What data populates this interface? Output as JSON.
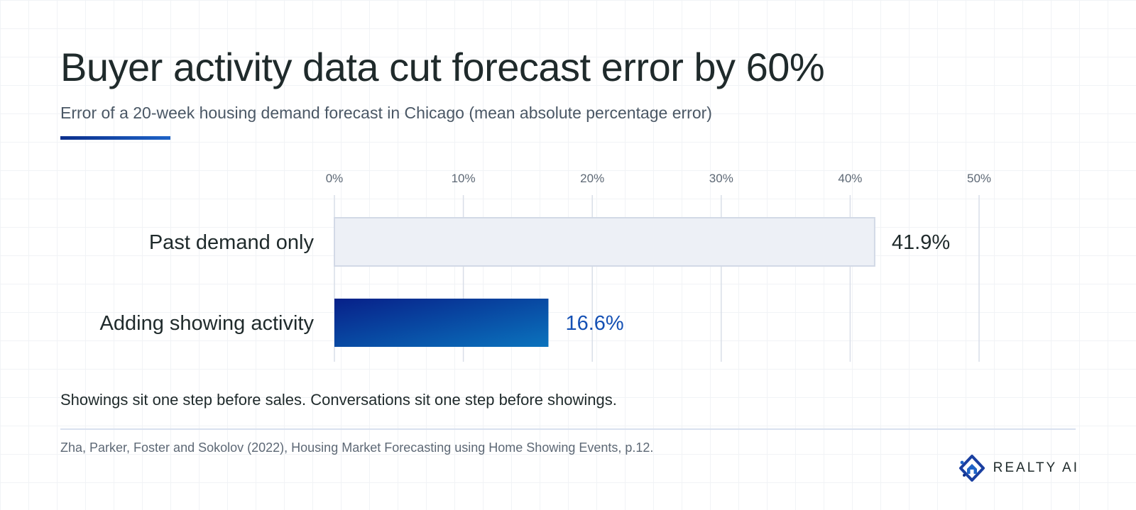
{
  "title": "Buyer activity data cut forecast error by 60%",
  "subtitle": "Error of a 20-week housing demand forecast in Chicago (mean absolute percentage error)",
  "colors": {
    "title": "#1f2a2b",
    "accent_dark": "#0b2f8c",
    "accent_light": "#1e63c7",
    "bar_muted_fill": "#edf0f6",
    "bar_muted_stroke": "#d2d9e6",
    "value_highlight": "#1450b4",
    "gridline": "#d9dee8"
  },
  "chart_data": {
    "type": "bar",
    "orientation": "horizontal",
    "categories": [
      "Past demand only",
      "Adding showing activity"
    ],
    "values": [
      41.9,
      16.6
    ],
    "value_labels": [
      "41.9%",
      "16.6%"
    ],
    "x_ticks": [
      "0%",
      "10%",
      "20%",
      "30%",
      "40%",
      "50%"
    ],
    "x_tick_values": [
      0,
      10,
      20,
      30,
      40,
      50
    ],
    "xlim": [
      0,
      50
    ],
    "xlabel": "",
    "ylabel": "",
    "grid": true,
    "legend": "none",
    "highlighted_category": "Adding showing activity"
  },
  "takeaway": "Showings sit one step before sales. Conversations sit one step before showings.",
  "source": "Zha, Parker, Foster and Sokolov (2022), Housing Market Forecasting using Home Showing Events, p.12.",
  "brand": {
    "name": "REALTY AI",
    "icon": "realty-ai-logo"
  }
}
